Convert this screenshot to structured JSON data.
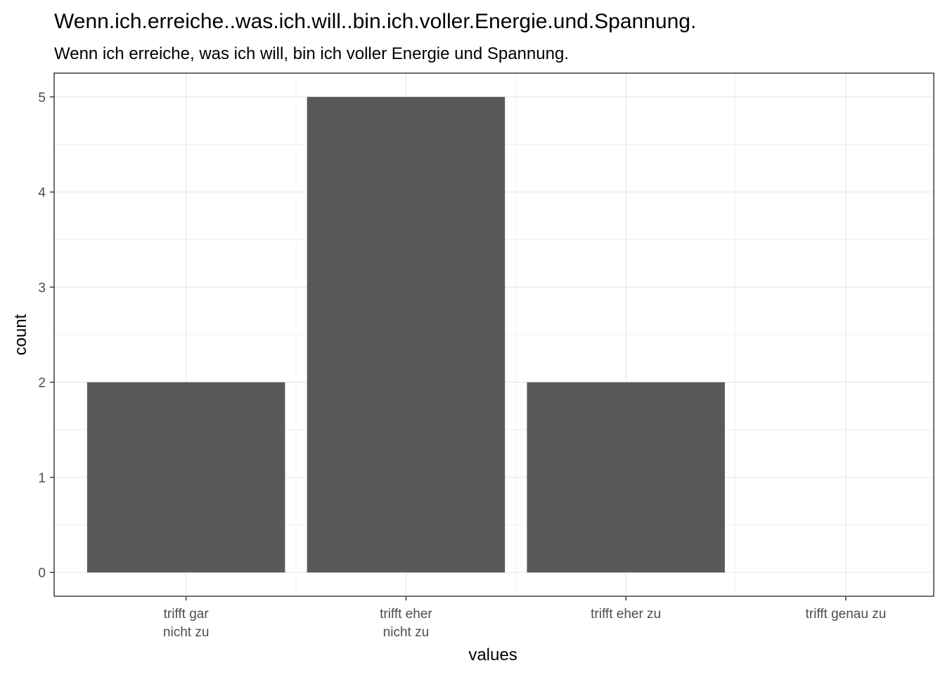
{
  "chart_data": {
    "type": "bar",
    "title": "Wenn.ich.erreiche..was.ich.will..bin.ich.voller.Energie.und.Spannung.",
    "subtitle": "Wenn ich erreiche, was ich will, bin ich voller Energie und Spannung.",
    "xlabel": "values",
    "ylabel": "count",
    "categories": [
      [
        "trifft gar",
        "nicht zu"
      ],
      [
        "trifft eher",
        "nicht zu"
      ],
      [
        "trifft eher zu"
      ],
      [
        "trifft genau zu"
      ]
    ],
    "values": [
      2,
      5,
      2,
      0
    ],
    "ylim": [
      -0.25,
      5.25
    ],
    "yticks": [
      0,
      1,
      2,
      3,
      4,
      5
    ],
    "bar_color": "#595959",
    "grid": true,
    "legend": "none"
  }
}
